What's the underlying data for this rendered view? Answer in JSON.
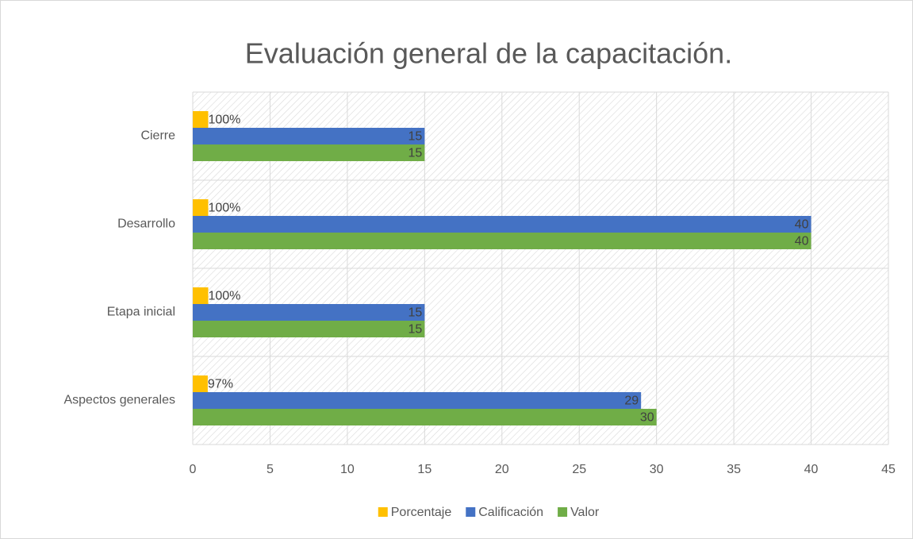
{
  "chart_data": {
    "type": "hbar",
    "title": "Evaluación general de la capacitación.",
    "categories": [
      "Cierre",
      "Desarrollo",
      "Etapa inicial",
      "Aspectos  generales"
    ],
    "series": [
      {
        "name": "Porcentaje",
        "color": "#FFC000",
        "values": [
          1,
          1,
          1,
          0.97
        ],
        "value_labels": [
          "100%",
          "100%",
          "100%",
          "97%"
        ]
      },
      {
        "name": "Calificación",
        "color": "#4472C4",
        "values": [
          15,
          40,
          15,
          29
        ]
      },
      {
        "name": "Valor",
        "color": "#70AD47",
        "values": [
          15,
          40,
          15,
          30
        ]
      }
    ],
    "xlim": [
      0,
      45
    ],
    "xticks": [
      0,
      5,
      10,
      15,
      20,
      25,
      30,
      35,
      40,
      45
    ],
    "grid": true,
    "legend": "bottom"
  }
}
